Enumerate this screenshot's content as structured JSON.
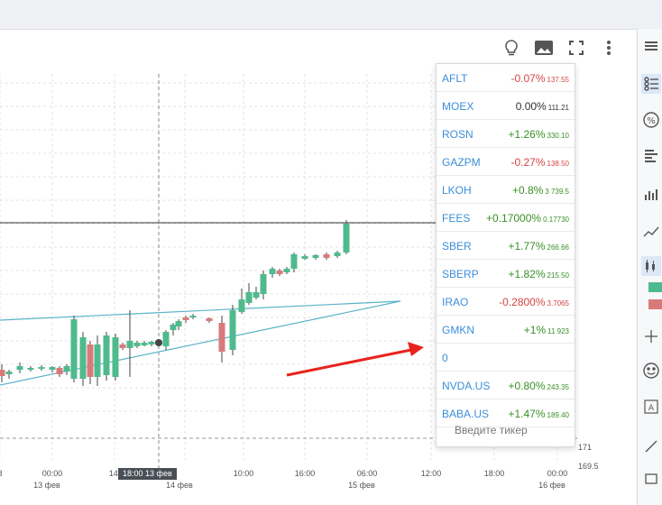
{
  "toolbar": {
    "icons": [
      "lightbulb-icon",
      "image-icon",
      "fullscreen-icon",
      "more-vertical-icon"
    ]
  },
  "chart": {
    "x_ticks": [
      {
        "label": "8",
        "sub": ""
      },
      {
        "label": "00:00",
        "sub": "13 фев"
      },
      {
        "label": "14:",
        "sub": ""
      },
      {
        "label": "",
        "sub": "14 фев"
      },
      {
        "label": "10:00",
        "sub": ""
      },
      {
        "label": "16:00",
        "sub": ""
      },
      {
        "label": "06:00",
        "sub": "15 фев"
      },
      {
        "label": "12:00",
        "sub": ""
      },
      {
        "label": "18:00",
        "sub": ""
      },
      {
        "label": "00:00",
        "sub": "16 фев"
      }
    ],
    "crosshair_time": "18:00  13 фев",
    "price_labels": [
      "171",
      "169.5"
    ],
    "colors": {
      "up": "#4fba8d",
      "down": "#d97a7a",
      "trendline": "#5ab3c9",
      "arrow": "#e8231c"
    }
  },
  "ticker_list": {
    "items": [
      {
        "symbol": "AFLT",
        "change": "-0.07%",
        "price": "137.55",
        "dir": "neg"
      },
      {
        "symbol": "MOEX",
        "change": "0.00%",
        "price": "111.21",
        "dir": "neu"
      },
      {
        "symbol": "ROSN",
        "change": "+1.26%",
        "price": "330.10",
        "dir": "pos"
      },
      {
        "symbol": "GAZPM",
        "change": "-0.27%",
        "price": "138.50",
        "dir": "neg"
      },
      {
        "symbol": "LKOH",
        "change": "+0.8%",
        "price": "3 739.5",
        "dir": "pos"
      },
      {
        "symbol": "FEES",
        "change": "+0.17000%",
        "price": "0.17730",
        "dir": "pos"
      },
      {
        "symbol": "SBER",
        "change": "+1.77%",
        "price": "266.66",
        "dir": "pos"
      },
      {
        "symbol": "SBERP",
        "change": "+1.82%",
        "price": "215.50",
        "dir": "pos"
      },
      {
        "symbol": "IRAO",
        "change": "-0.2800%",
        "price": "3.7065",
        "dir": "neg"
      },
      {
        "symbol": "GMKN",
        "change": "+1%",
        "price": "11 923",
        "dir": "pos"
      },
      {
        "symbol": "0",
        "change": "",
        "price": "",
        "dir": "neu"
      },
      {
        "symbol": "NVDA.US",
        "change": "+0.80%",
        "price": "243.35",
        "dir": "pos"
      },
      {
        "symbol": "BABA.US",
        "change": "+1.47%",
        "price": "189.40",
        "dir": "pos"
      }
    ],
    "input_placeholder": "Введите тикер"
  },
  "right_rail": {
    "icons": [
      "menu-icon",
      "layout-list-icon",
      "percent-icon",
      "text-align-icon",
      "bar-chart-icon",
      "line-chart-icon",
      "candles-icon",
      "crosshair-icon",
      "smile-icon",
      "text-box-icon",
      "line-tool-icon",
      "rectangle-icon"
    ]
  }
}
